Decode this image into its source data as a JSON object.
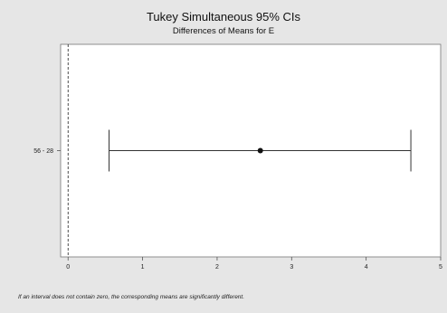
{
  "chart_data": {
    "type": "interval",
    "title": "Tukey Simultaneous 95% CIs",
    "subtitle": "Differences of Means for E",
    "xlabel": "",
    "ylabel": "",
    "xlim": [
      -0.1,
      5
    ],
    "xticks": [
      0,
      1,
      2,
      3,
      4,
      5
    ],
    "reference_line": 0,
    "intervals": [
      {
        "label": "56 - 28",
        "lower": 0.55,
        "estimate": 2.58,
        "upper": 4.6
      }
    ],
    "footnote": "If an interval does not contain zero, the corresponding means are significantly different."
  }
}
